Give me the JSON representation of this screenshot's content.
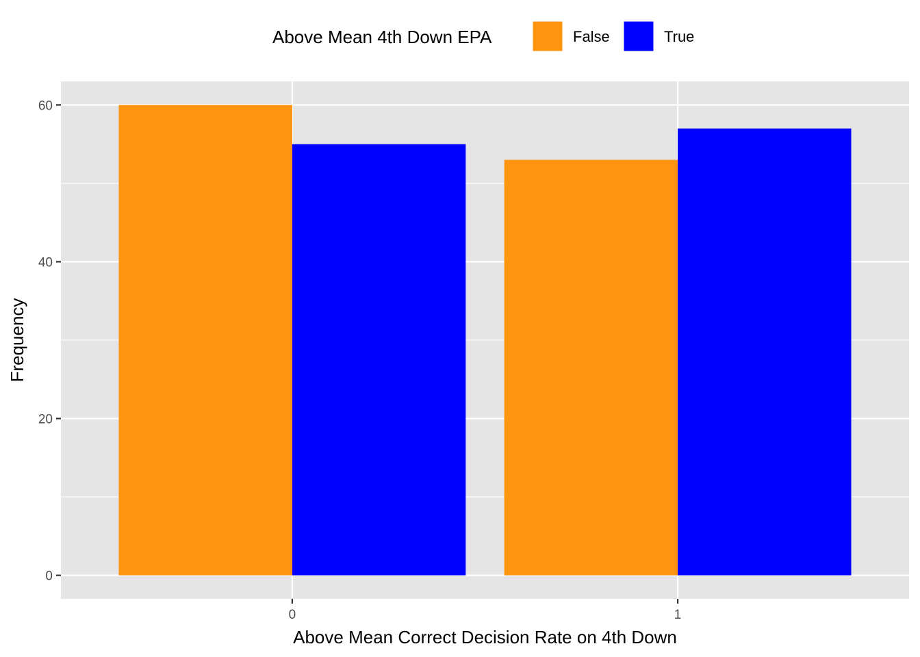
{
  "chart_data": {
    "type": "bar",
    "categories": [
      "0",
      "1"
    ],
    "series": [
      {
        "name": "False",
        "color": "#FF9410",
        "values": [
          60,
          53
        ]
      },
      {
        "name": "True",
        "color": "#0000FF",
        "values": [
          55,
          57
        ]
      }
    ],
    "xlabel": "Above Mean Correct Decision Rate on 4th Down",
    "ylabel": "Frequency",
    "ylim": [
      -3,
      63
    ],
    "yticks": [
      0,
      20,
      40,
      60
    ],
    "grid": true,
    "panel_background": "#E5E5E5",
    "legend": {
      "title": "Above Mean 4th Down EPA",
      "position": "top",
      "entries": [
        "False",
        "True"
      ]
    }
  }
}
